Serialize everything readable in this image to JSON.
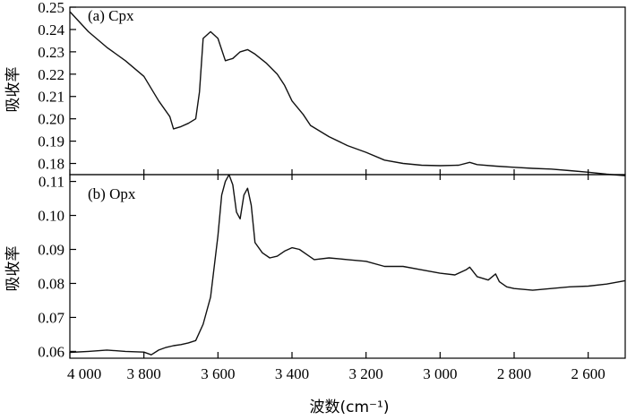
{
  "chart_data": {
    "type": "line",
    "xlabel": "波数(cm⁻¹)",
    "xlim": [
      4000,
      2500
    ],
    "xticks": [
      {
        "value": 4000,
        "label": "4 000"
      },
      {
        "value": 3800,
        "label": "3 800"
      },
      {
        "value": 3600,
        "label": "3 600"
      },
      {
        "value": 3400,
        "label": "3 400"
      },
      {
        "value": 3200,
        "label": "3 200"
      },
      {
        "value": 3000,
        "label": "3 000"
      },
      {
        "value": 2800,
        "label": "2 800"
      },
      {
        "value": 2600,
        "label": "2 600"
      }
    ],
    "panels": [
      {
        "label": "(a) Cpx",
        "ylabel": "吸收率",
        "ylim": [
          0.175,
          0.25
        ],
        "yticks": [
          {
            "value": 0.25,
            "label": "0.25"
          },
          {
            "value": 0.24,
            "label": "0.24"
          },
          {
            "value": 0.23,
            "label": "0.23"
          },
          {
            "value": 0.22,
            "label": "0.22"
          },
          {
            "value": 0.21,
            "label": "0.21"
          },
          {
            "value": 0.2,
            "label": "0.20"
          },
          {
            "value": 0.19,
            "label": "0.19"
          },
          {
            "value": 0.18,
            "label": "0.18"
          }
        ],
        "x": [
          4000,
          3950,
          3900,
          3850,
          3800,
          3760,
          3730,
          3720,
          3700,
          3680,
          3660,
          3650,
          3640,
          3620,
          3600,
          3580,
          3560,
          3540,
          3520,
          3500,
          3470,
          3440,
          3420,
          3400,
          3370,
          3350,
          3300,
          3250,
          3200,
          3150,
          3100,
          3050,
          3000,
          2950,
          2920,
          2900,
          2850,
          2800,
          2750,
          2700,
          2650,
          2600,
          2550,
          2500
        ],
        "y": [
          0.248,
          0.239,
          0.232,
          0.226,
          0.219,
          0.208,
          0.201,
          0.1955,
          0.1965,
          0.198,
          0.2,
          0.212,
          0.236,
          0.239,
          0.236,
          0.226,
          0.227,
          0.23,
          0.231,
          0.229,
          0.225,
          0.22,
          0.215,
          0.208,
          0.202,
          0.197,
          0.192,
          0.188,
          0.185,
          0.1815,
          0.18,
          0.1792,
          0.179,
          0.1792,
          0.1805,
          0.1795,
          0.1788,
          0.1783,
          0.1778,
          0.1775,
          0.1768,
          0.1761,
          0.1752,
          0.1745
        ]
      },
      {
        "label": "(b) Opx",
        "ylabel": "吸收率",
        "ylim": [
          0.058,
          0.112
        ],
        "yticks": [
          {
            "value": 0.11,
            "label": "0.11"
          },
          {
            "value": 0.1,
            "label": "0.10"
          },
          {
            "value": 0.09,
            "label": "0.09"
          },
          {
            "value": 0.08,
            "label": "0.08"
          },
          {
            "value": 0.07,
            "label": "0.07"
          },
          {
            "value": 0.06,
            "label": "0.06"
          }
        ],
        "x": [
          4000,
          3950,
          3900,
          3850,
          3800,
          3780,
          3760,
          3740,
          3720,
          3700,
          3680,
          3660,
          3640,
          3620,
          3600,
          3590,
          3580,
          3570,
          3560,
          3550,
          3540,
          3530,
          3520,
          3510,
          3500,
          3480,
          3460,
          3440,
          3420,
          3400,
          3380,
          3360,
          3340,
          3300,
          3250,
          3200,
          3150,
          3100,
          3050,
          3000,
          2960,
          2930,
          2920,
          2900,
          2870,
          2850,
          2840,
          2820,
          2800,
          2750,
          2700,
          2650,
          2600,
          2550,
          2500
        ],
        "y": [
          0.0597,
          0.06,
          0.0604,
          0.06,
          0.0598,
          0.059,
          0.0604,
          0.0612,
          0.0617,
          0.062,
          0.0625,
          0.0632,
          0.068,
          0.076,
          0.094,
          0.106,
          0.11,
          0.112,
          0.109,
          0.101,
          0.099,
          0.106,
          0.108,
          0.103,
          0.092,
          0.089,
          0.0875,
          0.088,
          0.0895,
          0.0905,
          0.09,
          0.0885,
          0.087,
          0.0875,
          0.087,
          0.0865,
          0.085,
          0.085,
          0.084,
          0.083,
          0.0825,
          0.084,
          0.0848,
          0.082,
          0.081,
          0.0828,
          0.0805,
          0.079,
          0.0785,
          0.078,
          0.0785,
          0.079,
          0.0792,
          0.0798,
          0.0808
        ]
      }
    ]
  }
}
